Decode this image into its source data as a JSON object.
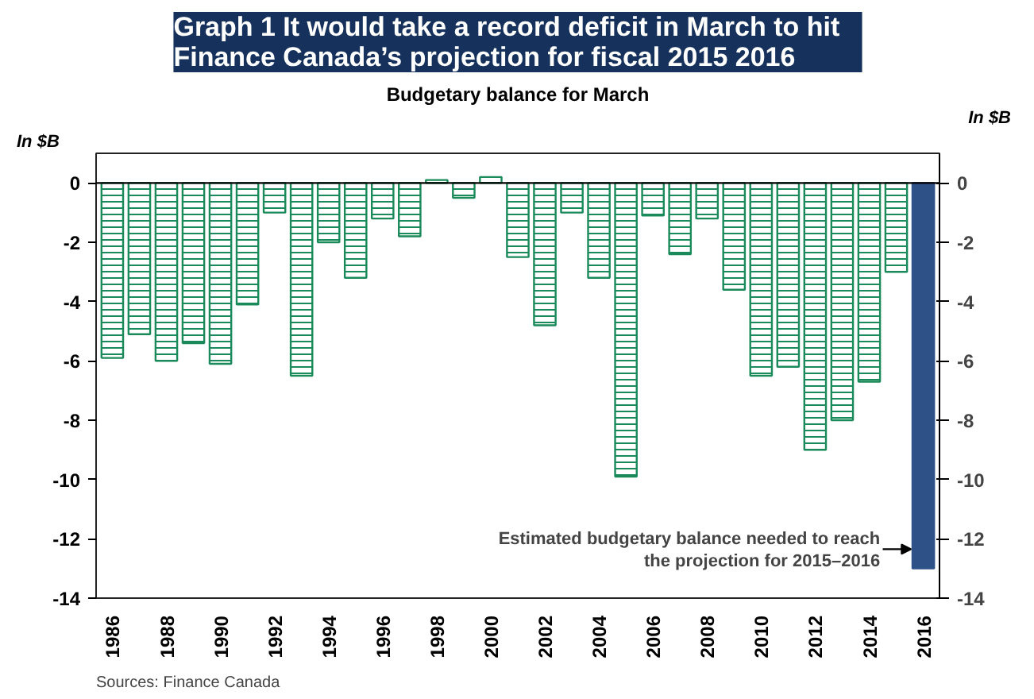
{
  "chart_data": {
    "type": "bar",
    "title": "Graph 1    It would take a record deficit in March to hit\nFinance Canada’s projection for fiscal 2015  2016",
    "subtitle": "Budgetary balance for March",
    "ylabel": "In $B",
    "y2label": "In $B",
    "categories": [
      "1986",
      null,
      "1988",
      null,
      "1990",
      null,
      "1992",
      null,
      "1994",
      null,
      "1996",
      null,
      "1998",
      null,
      "2000",
      null,
      "2002",
      null,
      "2004",
      null,
      "2006",
      null,
      "2008",
      null,
      "2010",
      null,
      "2012",
      null,
      "2014",
      null,
      "2016"
    ],
    "values": [
      -5.9,
      -5.1,
      -6.0,
      -5.4,
      -6.1,
      -4.1,
      -1.0,
      -6.5,
      -2.0,
      -3.2,
      -1.2,
      -1.8,
      0.1,
      -0.5,
      0.2,
      -2.5,
      -4.8,
      -1.0,
      -3.2,
      -9.9,
      -1.1,
      -2.4,
      -1.2,
      -3.6,
      -6.5,
      -6.2,
      -9.0,
      -8.0,
      -6.7,
      -3.0,
      -13.0
    ],
    "colors": [
      "#1a8a5a",
      "#1a8a5a",
      "#1a8a5a",
      "#1a8a5a",
      "#1a8a5a",
      "#1a8a5a",
      "#1a8a5a",
      "#1a8a5a",
      "#1a8a5a",
      "#1a8a5a",
      "#1a8a5a",
      "#1a8a5a",
      "#1a8a5a",
      "#1a8a5a",
      "#1a8a5a",
      "#1a8a5a",
      "#1a8a5a",
      "#1a8a5a",
      "#1a8a5a",
      "#1a8a5a",
      "#1a8a5a",
      "#1a8a5a",
      "#1a8a5a",
      "#1a8a5a",
      "#1a8a5a",
      "#1a8a5a",
      "#1a8a5a",
      "#1a8a5a",
      "#1a8a5a",
      "#1a8a5a",
      "#2e5188"
    ],
    "ylim": [
      -14,
      1
    ],
    "yticks": [
      -14,
      -12,
      -10,
      -8,
      -6,
      -4,
      -2,
      0
    ],
    "y2lim": [
      -14,
      1
    ],
    "y2ticks": [
      -14,
      -12,
      -10,
      -8,
      -6,
      -4,
      -2,
      0
    ],
    "annotations": [
      {
        "text": "Estimated budgetary balance needed to reach\nthe projection for 2015–2016",
        "x": "2016",
        "y": -12.7
      },
      "Sources: Finance Canada"
    ],
    "ref_lines": [
      {
        "axis": "y",
        "value": 0,
        "color": "#000000"
      }
    ],
    "grid": false
  }
}
